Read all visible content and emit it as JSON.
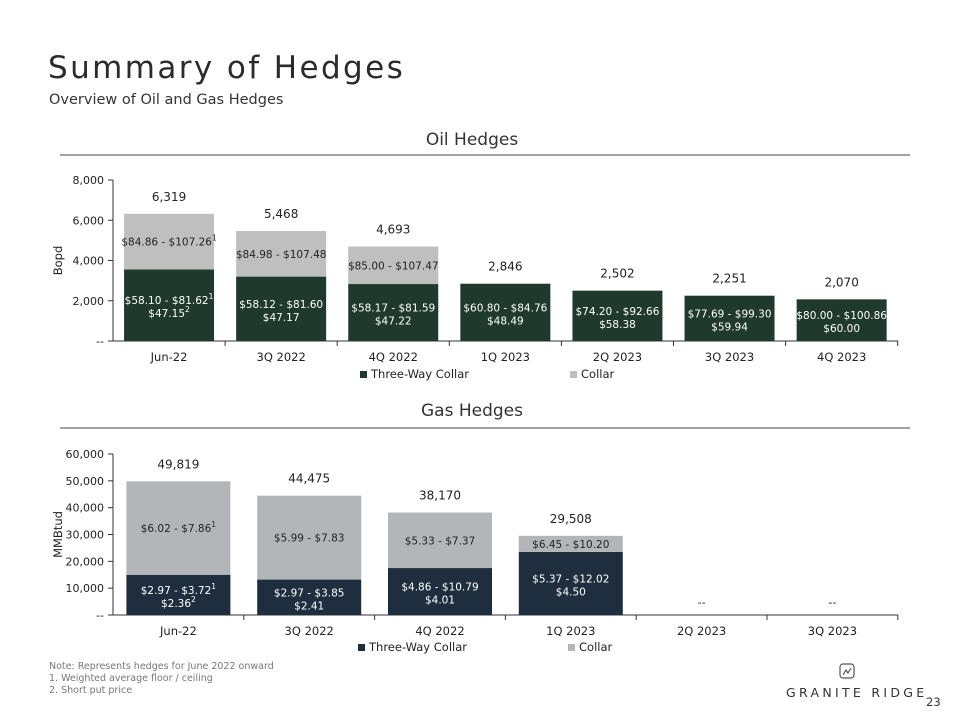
{
  "title": "Summary of Hedges",
  "subtitle": "Overview of Oil and Gas Hedges",
  "colors": {
    "dark": "#1f3a2c",
    "darkBlue": "#1e2e3e",
    "light": "#bfbfbf",
    "lightGas": "#b3b6b9",
    "axis": "#333333"
  },
  "chart_data": [
    {
      "type": "bar",
      "stacked": true,
      "title": "Oil Hedges",
      "ylabel": "Bopd",
      "xlabel": "",
      "ylim": [
        0,
        8000
      ],
      "yticks": [
        "--",
        "2,000",
        "4,000",
        "6,000",
        "8,000"
      ],
      "yticks_values": [
        0,
        2000,
        4000,
        6000,
        8000
      ],
      "categories": [
        "Jun-22",
        "3Q 2022",
        "4Q 2022",
        "1Q 2023",
        "2Q 2023",
        "3Q 2023",
        "4Q 2023"
      ],
      "series": [
        {
          "name": "Three-Way Collar",
          "values": [
            3560,
            3200,
            2830,
            2846,
            2502,
            2251,
            2070
          ],
          "labels": [
            [
              "$58.10 - $81.62",
              "$47.15"
            ],
            [
              "$58.12 - $81.60",
              "$47.17"
            ],
            [
              "$58.17 - $81.59",
              "$47.22"
            ],
            [
              "$60.80 - $84.76",
              "$48.49"
            ],
            [
              "$74.20 - $92.66",
              "$58.38"
            ],
            [
              "$77.69 - $99.30",
              "$59.94"
            ],
            [
              "$80.00 - $100.86",
              "$60.00"
            ]
          ]
        },
        {
          "name": "Collar",
          "values": [
            2759,
            2268,
            1863,
            0,
            0,
            0,
            0
          ],
          "labels": [
            "$84.86 - $107.26",
            "$84.98 - $107.48",
            "$85.00 - $107.47",
            "",
            "",
            "",
            ""
          ]
        }
      ],
      "totals": [
        "6,319",
        "5,468",
        "4,693",
        "2,846",
        "2,502",
        "2,251",
        "2,070"
      ],
      "legend": [
        "Three-Way Collar",
        "Collar"
      ],
      "legend_position": "bottom"
    },
    {
      "type": "bar",
      "stacked": true,
      "title": "Gas Hedges",
      "ylabel": "MMBtud",
      "xlabel": "",
      "ylim": [
        0,
        60000
      ],
      "yticks": [
        "--",
        "10,000",
        "20,000",
        "30,000",
        "40,000",
        "50,000",
        "60,000"
      ],
      "yticks_values": [
        0,
        10000,
        20000,
        30000,
        40000,
        50000,
        60000
      ],
      "categories": [
        "Jun-22",
        "3Q 2022",
        "4Q 2022",
        "1Q 2023",
        "2Q 2023",
        "3Q 2023"
      ],
      "series": [
        {
          "name": "Three-Way Collar",
          "values": [
            15000,
            13200,
            17500,
            23500,
            0,
            0
          ],
          "labels": [
            [
              "$2.97 - $3.72",
              "$2.36"
            ],
            [
              "$2.97 - $3.85",
              "$2.41"
            ],
            [
              "$4.86 - $10.79",
              "$4.01"
            ],
            [
              "$5.37 - $12.02",
              "$4.50"
            ],
            [
              "--"
            ],
            [
              "--"
            ]
          ]
        },
        {
          "name": "Collar",
          "values": [
            34819,
            31275,
            20670,
            6008,
            0,
            0
          ],
          "labels": [
            "$6.02 - $7.86",
            "$5.99 - $7.83",
            "$5.33 - $7.37",
            "$6.45 - $10.20",
            "",
            ""
          ]
        }
      ],
      "totals": [
        "49,819",
        "44,475",
        "38,170",
        "29,508",
        "",
        ""
      ],
      "legend": [
        "Three-Way Collar",
        "Collar"
      ],
      "legend_position": "bottom"
    }
  ],
  "footnotes": {
    "ref1": "1",
    "ref2": "2",
    "lines": [
      "Note: Represents hedges for June 2022 onward",
      "1.  Weighted average floor / ceiling",
      "2.  Short put price"
    ]
  },
  "brand": "GRANITE RIDGE",
  "page_number": "23"
}
